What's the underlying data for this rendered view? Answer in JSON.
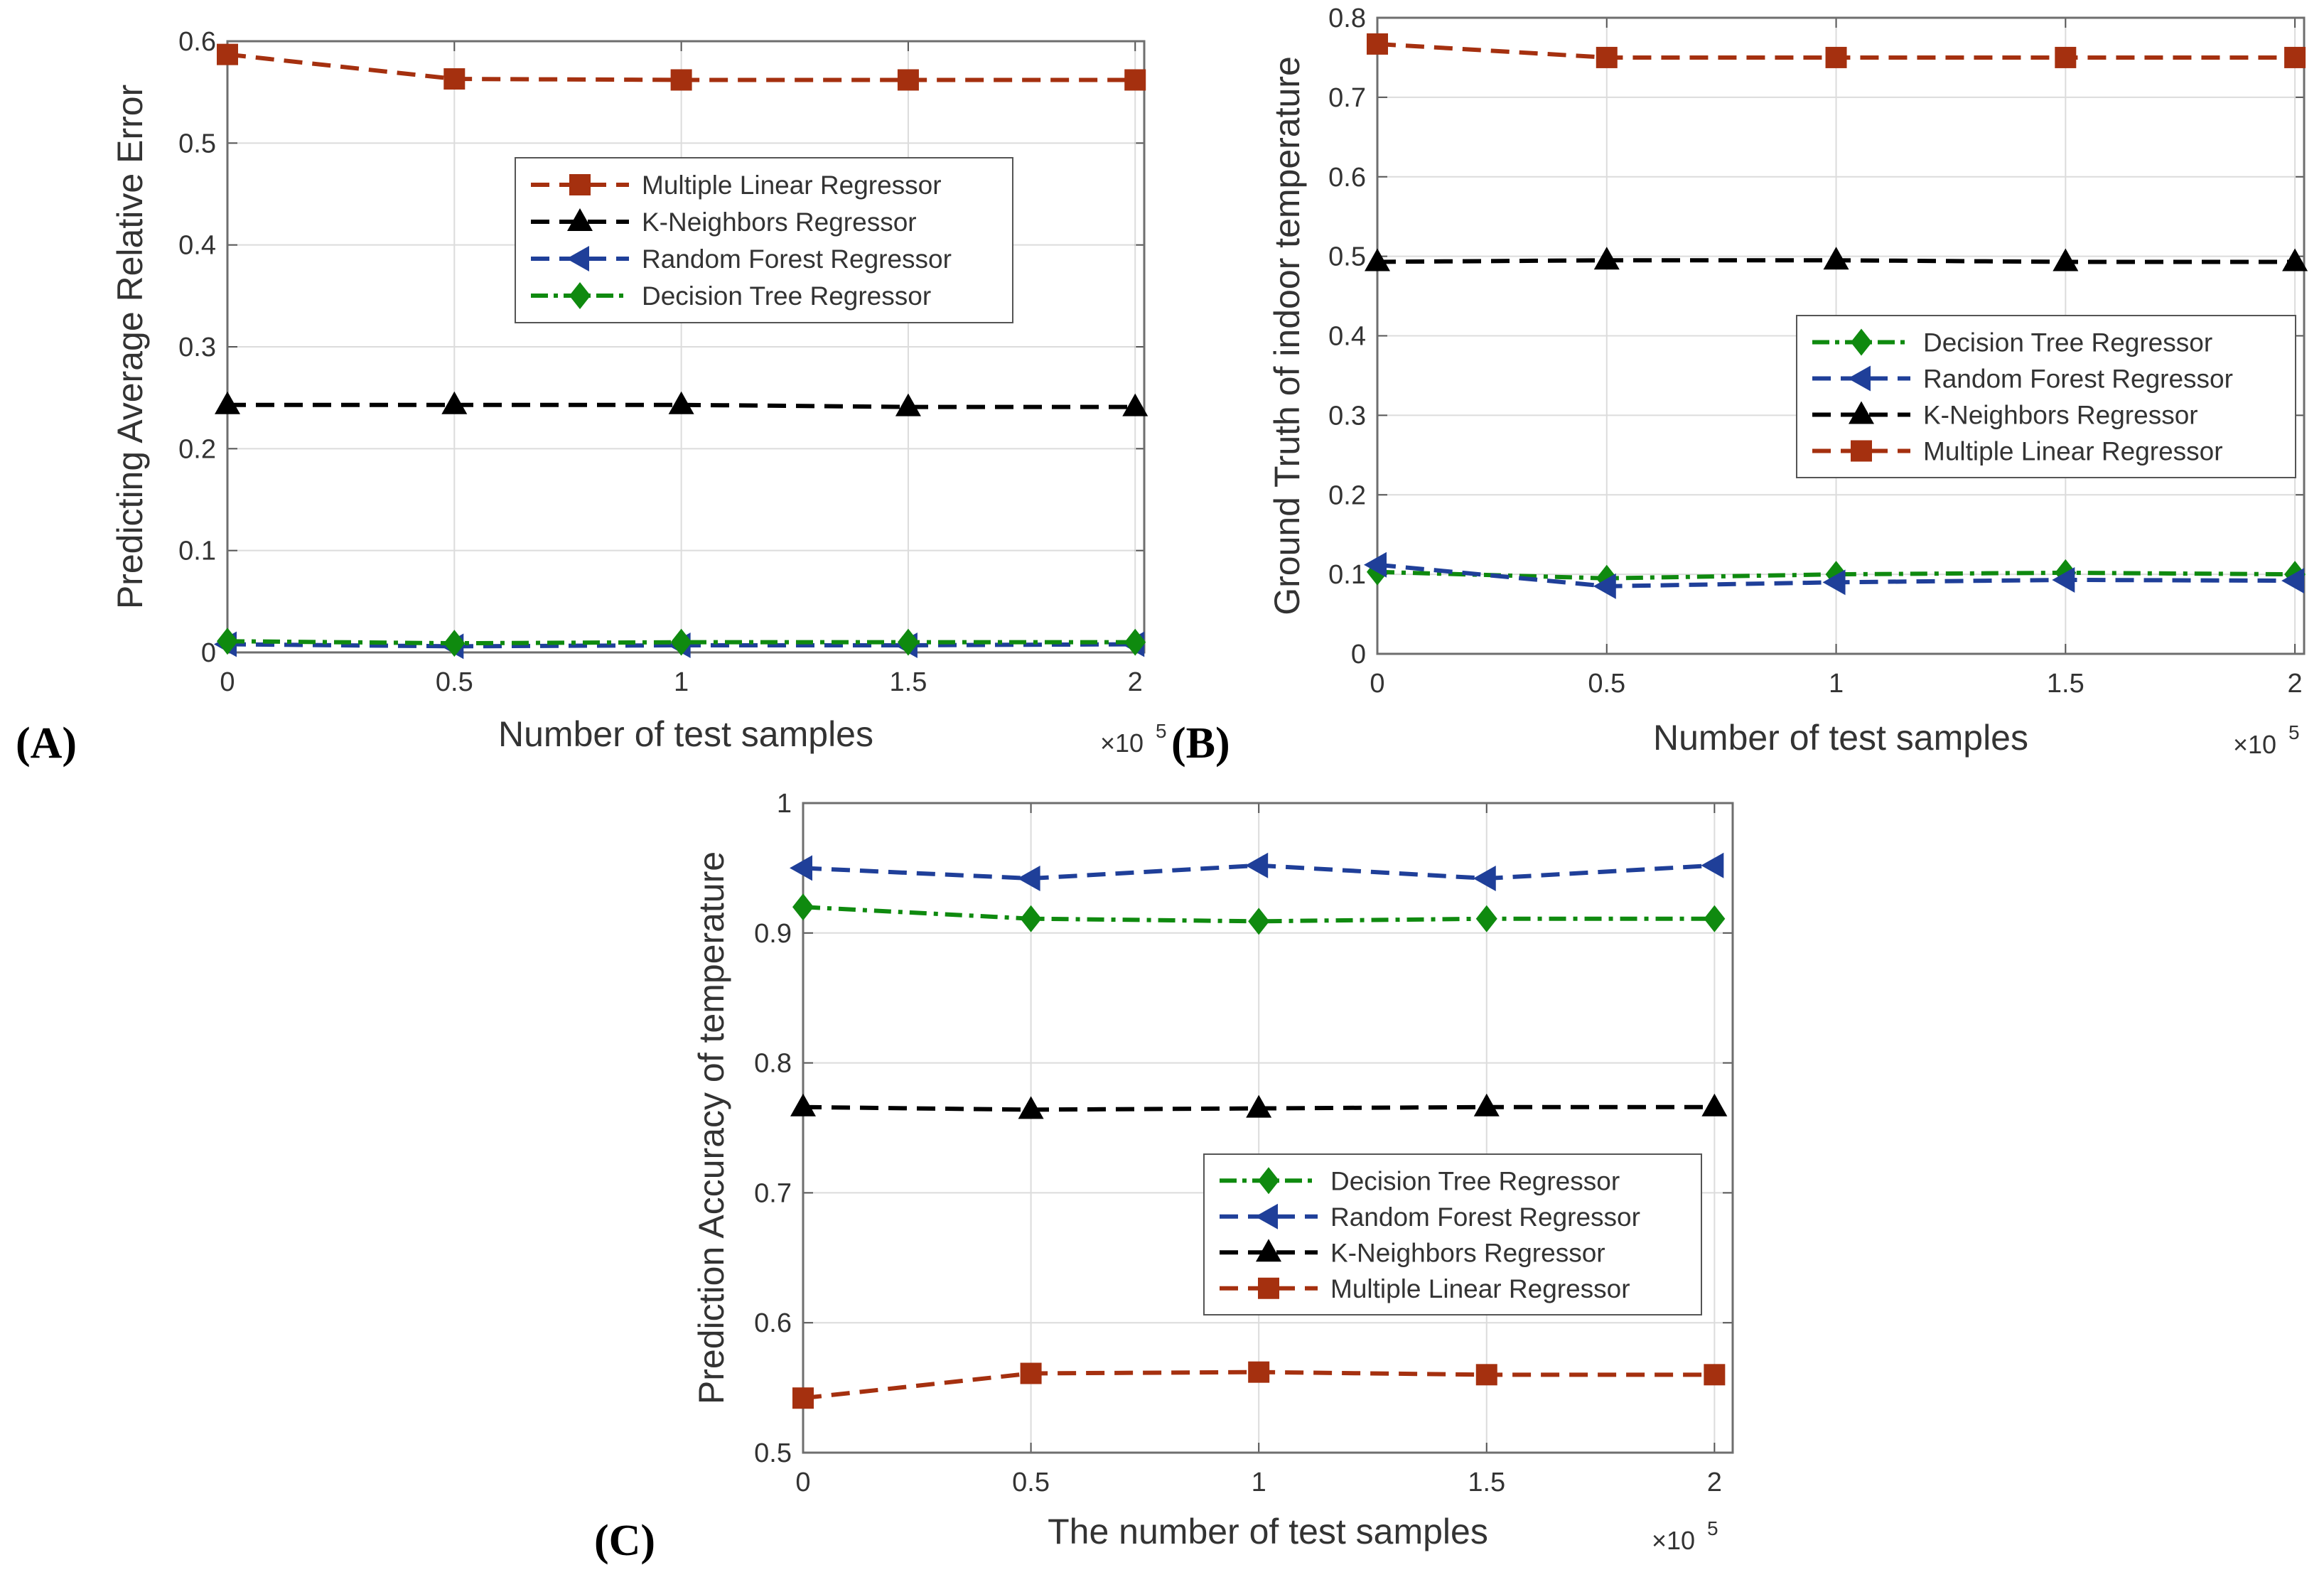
{
  "chart_data": [
    {
      "type": "line",
      "panel_label": "(A)",
      "title": "",
      "xlabel": "Number of test samples",
      "ylabel": "Predicting Average Relative Error",
      "x_multiplier": "×10",
      "x_exponent": "5",
      "xlim": [
        0,
        2.02
      ],
      "ylim": [
        0,
        0.6
      ],
      "xticks": [
        "0",
        "0.5",
        "1",
        "1.5",
        "2"
      ],
      "yticks": [
        "0",
        "0.1",
        "0.2",
        "0.3",
        "0.4",
        "0.5",
        "0.6"
      ],
      "grid": true,
      "legend_position": "upper-middle",
      "x": [
        0,
        0.5,
        1,
        1.5,
        2
      ],
      "series": [
        {
          "name": "Multiple Linear Regressor",
          "color": "#A5300F",
          "marker": "square",
          "dash": "dashed",
          "values": [
            0.587,
            0.563,
            0.562,
            0.562,
            0.562
          ]
        },
        {
          "name": "K-Neighbors Regressor",
          "color": "#000000",
          "marker": "triangle-up",
          "dash": "dashed",
          "values": [
            0.243,
            0.243,
            0.243,
            0.241,
            0.241
          ]
        },
        {
          "name": "Random Forest Regressor",
          "color": "#1F3F99",
          "marker": "triangle-left",
          "dash": "dashed",
          "values": [
            0.008,
            0.006,
            0.007,
            0.007,
            0.008
          ]
        },
        {
          "name": "Decision Tree Regressor",
          "color": "#0F8A0F",
          "marker": "diamond",
          "dash": "dashdot",
          "values": [
            0.011,
            0.009,
            0.01,
            0.01,
            0.01
          ]
        }
      ]
    },
    {
      "type": "line",
      "panel_label": "(B)",
      "title": "",
      "xlabel": "Number of test samples",
      "ylabel": "Ground Truth of indoor temperature",
      "x_multiplier": "×10",
      "x_exponent": "5",
      "xlim": [
        0,
        2.02
      ],
      "ylim": [
        0,
        0.8
      ],
      "xticks": [
        "0",
        "0.5",
        "1",
        "1.5",
        "2"
      ],
      "yticks": [
        "0",
        "0.1",
        "0.2",
        "0.3",
        "0.4",
        "0.5",
        "0.6",
        "0.7",
        "0.8"
      ],
      "grid": true,
      "legend_position": "middle-right",
      "x": [
        0,
        0.5,
        1,
        1.5,
        2
      ],
      "series": [
        {
          "name": "Decision Tree Regressor",
          "color": "#0F8A0F",
          "marker": "diamond",
          "dash": "dashdot",
          "values": [
            0.103,
            0.095,
            0.1,
            0.102,
            0.1
          ]
        },
        {
          "name": "Random Forest Regressor",
          "color": "#1F3F99",
          "marker": "triangle-left",
          "dash": "dashed",
          "values": [
            0.112,
            0.085,
            0.09,
            0.093,
            0.092
          ]
        },
        {
          "name": "K-Neighbors Regressor",
          "color": "#000000",
          "marker": "triangle-up",
          "dash": "dashed",
          "values": [
            0.493,
            0.495,
            0.495,
            0.493,
            0.493
          ]
        },
        {
          "name": "Multiple Linear Regressor",
          "color": "#A5300F",
          "marker": "square",
          "dash": "dashed",
          "values": [
            0.767,
            0.75,
            0.75,
            0.75,
            0.75
          ]
        }
      ]
    },
    {
      "type": "line",
      "panel_label": "(C)",
      "title": "",
      "xlabel": "The number of test samples",
      "ylabel": "Prediction Accuracy of temperature",
      "x_multiplier": "×10",
      "x_exponent": "5",
      "xlim": [
        0,
        2.04
      ],
      "ylim": [
        0.5,
        1
      ],
      "xticks": [
        "0",
        "0.5",
        "1",
        "1.5",
        "2"
      ],
      "yticks": [
        "0.5",
        "0.6",
        "0.7",
        "0.8",
        "0.9",
        "1"
      ],
      "grid": true,
      "legend_position": "middle-right",
      "x": [
        0,
        0.5,
        1,
        1.5,
        2
      ],
      "series": [
        {
          "name": "Decision Tree Regressor",
          "color": "#0F8A0F",
          "marker": "diamond",
          "dash": "dashdot",
          "values": [
            0.92,
            0.911,
            0.909,
            0.911,
            0.911
          ]
        },
        {
          "name": "Random Forest Regressor",
          "color": "#1F3F99",
          "marker": "triangle-left",
          "dash": "dashed",
          "values": [
            0.95,
            0.942,
            0.952,
            0.942,
            0.952
          ]
        },
        {
          "name": "K-Neighbors Regressor",
          "color": "#000000",
          "marker": "triangle-up",
          "dash": "dashed",
          "values": [
            0.766,
            0.764,
            0.765,
            0.766,
            0.766
          ]
        },
        {
          "name": "Multiple Linear Regressor",
          "color": "#A5300F",
          "marker": "square",
          "dash": "dashed",
          "values": [
            0.542,
            0.561,
            0.562,
            0.56,
            0.56
          ]
        }
      ]
    }
  ]
}
